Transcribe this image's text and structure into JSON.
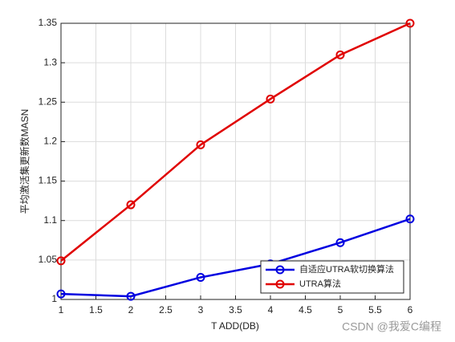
{
  "chart_data": {
    "type": "line",
    "xlabel": "T ADD(DB)",
    "ylabel": "平均激活集更新数MASN",
    "x": [
      1,
      2,
      3,
      4,
      5,
      6
    ],
    "series": [
      {
        "name": "自适应UTRA软切换算法",
        "color": "#0000e0",
        "values": [
          1.007,
          1.004,
          1.028,
          1.045,
          1.072,
          1.102
        ]
      },
      {
        "name": "UTRA算法",
        "color": "#e00000",
        "values": [
          1.049,
          1.12,
          1.196,
          1.254,
          1.31,
          1.35
        ]
      }
    ],
    "xlim": [
      1,
      6
    ],
    "xticks": [
      1,
      1.5,
      2,
      2.5,
      3,
      3.5,
      4,
      4.5,
      5,
      5.5,
      6
    ],
    "ylim": [
      1,
      1.35
    ],
    "yticks": [
      1,
      1.05,
      1.1,
      1.15,
      1.2,
      1.25,
      1.3,
      1.35
    ],
    "grid": true,
    "legend": "southeast",
    "watermark": "CSDN @我爱C编程"
  }
}
